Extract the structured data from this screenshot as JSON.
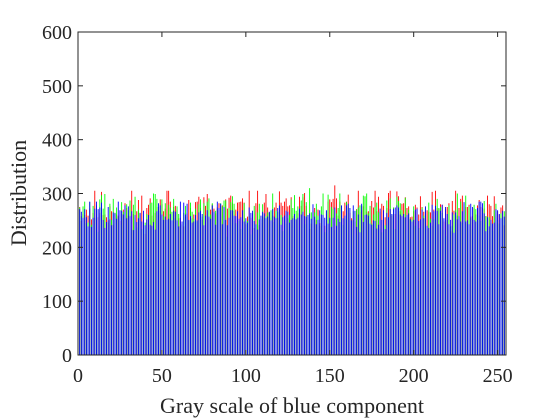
{
  "chart_data": {
    "type": "bar",
    "title": "",
    "xlabel": "Gray scale of blue component",
    "ylabel": "Distribution",
    "xlim": [
      0,
      255
    ],
    "ylim": [
      0,
      600
    ],
    "xticks": [
      "0",
      "50",
      "100",
      "150",
      "200",
      "250"
    ],
    "yticks": [
      "0",
      "100",
      "200",
      "300",
      "400",
      "500",
      "600"
    ],
    "grid": false,
    "legend": "none",
    "bins": 256,
    "overlay_order": [
      "red",
      "green",
      "blue"
    ],
    "series": [
      {
        "color": "#ff0000",
        "summary": "per-bin counts between ~225 and ~315, mean ~260"
      },
      {
        "color": "#00ff00",
        "summary": "per-bin counts between ~220 and ~310, mean ~260"
      },
      {
        "color": "#0000ff",
        "summary": "per-bin counts between ~225 and ~295, mean ~255"
      }
    ],
    "range": {
      "red": [
        225,
        315
      ],
      "green": [
        220,
        310
      ],
      "blue": [
        225,
        295
      ]
    },
    "peaks": [
      {
        "series": "red",
        "x": 53,
        "y": 305
      },
      {
        "series": "green",
        "x": 138,
        "y": 310
      },
      {
        "series": "red",
        "x": 153,
        "y": 315
      },
      {
        "series": "green",
        "x": 255,
        "y": 302
      }
    ]
  }
}
